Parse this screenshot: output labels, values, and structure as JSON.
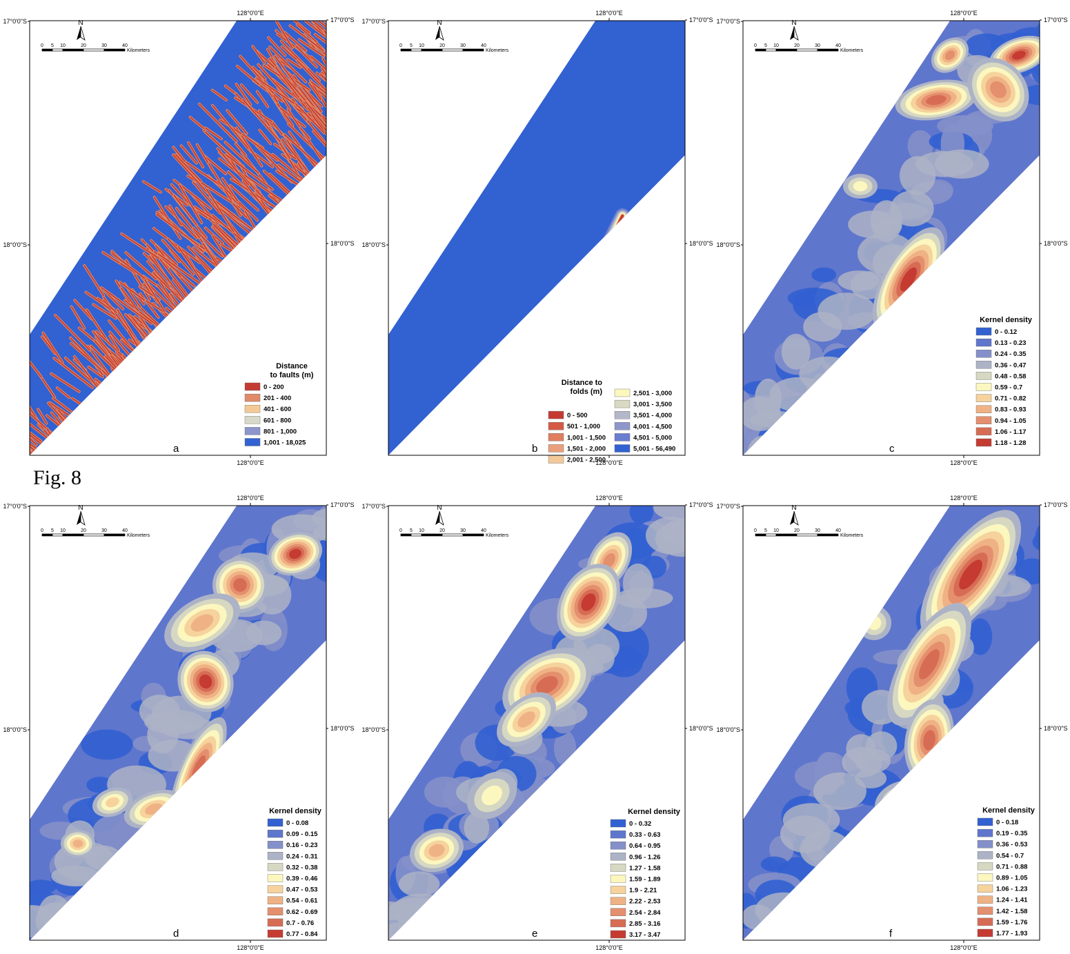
{
  "figure_label": "Fig. 8",
  "coords": {
    "lon_top": "128°0'0\"E",
    "lon_bottom": "128°0'0\"E",
    "lat_top": "17°0'0\"S",
    "lat_mid": "18°0'0\"S"
  },
  "scale": {
    "ticks": [
      "0",
      "5",
      "10",
      "20",
      "30",
      "40"
    ],
    "unit": "Kilometers"
  },
  "north": "N",
  "colors": {
    "blue": "#3060d0",
    "red": "#c83a30"
  },
  "panels": [
    {
      "id": "a",
      "letter": "a",
      "title": "Distance\nto faults (m)",
      "title_lines": [
        "Distance",
        "to faults (m)"
      ],
      "legend": [
        "0 - 200",
        "201 - 400",
        "401 - 600",
        "601 - 800",
        "801 - 1,000",
        "1,001 - 18,025"
      ],
      "swatches": [
        "#c53b31",
        "#df8a68",
        "#f3c995",
        "#d9d9c9",
        "#8c96cc",
        "#3261d1"
      ]
    },
    {
      "id": "b",
      "letter": "b",
      "title_lines": [
        "Distance to",
        "folds (m)"
      ],
      "legend": [
        "0 - 500",
        "501 - 1,000",
        "1,001 - 1,500",
        "1,501 - 2,000",
        "2,001 - 2,500",
        "2,501 - 3,000",
        "3,001 - 3,500",
        "3,501 - 4,000",
        "4,001 - 4,500",
        "4,501 - 5,000",
        "5,001 - 56,490"
      ],
      "swatches": [
        "#c53b31",
        "#d55a45",
        "#e07e60",
        "#eaa07c",
        "#f3c99a",
        "#fcf7bf",
        "#d9d9c4",
        "#b3b7c8",
        "#8e97cc",
        "#6a7dcf",
        "#3261d1"
      ]
    },
    {
      "id": "c",
      "letter": "c",
      "title_lines": [
        "Kernel density"
      ],
      "legend": [
        "0 - 0.12",
        "0.13 - 0.23",
        "0.24 - 0.35",
        "0.36 - 0.47",
        "0.48 - 0.58",
        "0.59 - 0.7",
        "0.71 - 0.82",
        "0.83 - 0.93",
        "0.94 - 1.05",
        "1.06 - 1.17",
        "1.18 - 1.28"
      ],
      "swatches": [
        "#3261d1",
        "#5f76cd",
        "#8490c9",
        "#adb3c6",
        "#d6d8c2",
        "#fcf7bf",
        "#f6d29d",
        "#efb285",
        "#e48f6d",
        "#d76c55",
        "#c53b31"
      ]
    },
    {
      "id": "d",
      "letter": "d",
      "title_lines": [
        "Kernel density"
      ],
      "legend": [
        "0 - 0.08",
        "0.09 - 0.15",
        "0.16 - 0.23",
        "0.24 - 0.31",
        "0.32 - 0.38",
        "0.39 - 0.46",
        "0.47 - 0.53",
        "0.54 - 0.61",
        "0.62 - 0.69",
        "0.7 - 0.76",
        "0.77 - 0.84"
      ],
      "swatches": [
        "#3261d1",
        "#5f76cd",
        "#8490c9",
        "#adb3c6",
        "#d6d8c2",
        "#fcf7bf",
        "#f6d29d",
        "#efb285",
        "#e48f6d",
        "#d76c55",
        "#c53b31"
      ]
    },
    {
      "id": "e",
      "letter": "e",
      "title_lines": [
        "Kernel density"
      ],
      "legend": [
        "0 - 0.32",
        "0.33 - 0.63",
        "0.64 - 0.95",
        "0.96 - 1.26",
        "1.27 - 1.58",
        "1.59 - 1.89",
        "1.9 - 2.21",
        "2.22 - 2.53",
        "2.54 - 2.84",
        "2.85 - 3.16",
        "3.17 - 3.47"
      ],
      "swatches": [
        "#3261d1",
        "#5f76cd",
        "#8490c9",
        "#adb3c6",
        "#d6d8c2",
        "#fcf7bf",
        "#f6d29d",
        "#efb285",
        "#e48f6d",
        "#d76c55",
        "#c53b31"
      ]
    },
    {
      "id": "f",
      "letter": "f",
      "title_lines": [
        "Kernel density"
      ],
      "legend": [
        "0 - 0.18",
        "0.19 - 0.35",
        "0.36 - 0.53",
        "0.54 - 0.7",
        "0.71 - 0.88",
        "0.89 - 1.05",
        "1.06 - 1.23",
        "1.24 - 1.41",
        "1.42 - 1.58",
        "1.59 - 1.76",
        "1.77 - 1.93"
      ],
      "swatches": [
        "#3261d1",
        "#5f76cd",
        "#8490c9",
        "#adb3c6",
        "#d6d8c2",
        "#fcf7bf",
        "#f6d29d",
        "#efb285",
        "#e48f6d",
        "#d76c55",
        "#c53b31"
      ]
    }
  ]
}
